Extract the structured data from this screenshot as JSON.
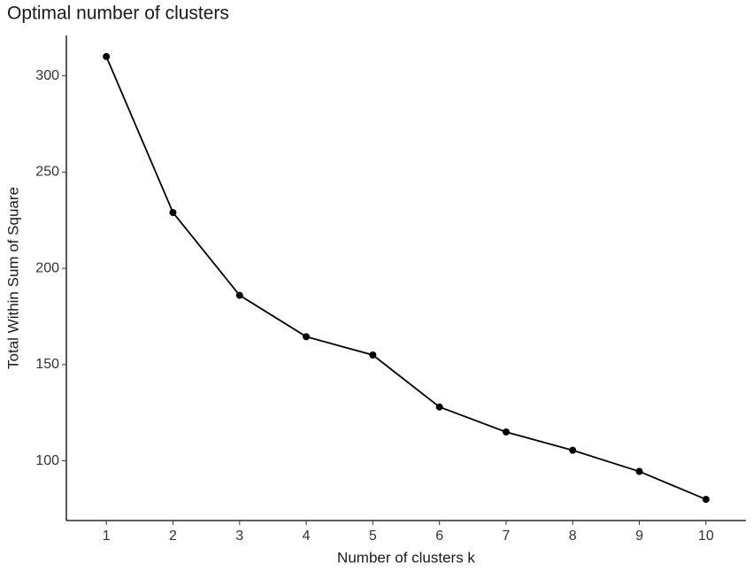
{
  "chart_data": {
    "type": "line",
    "title": "Optimal number of clusters",
    "x_label": "Number of clusters k",
    "y_label": "Total Within Sum of Square",
    "x": [
      1,
      2,
      3,
      4,
      5,
      6,
      7,
      8,
      9,
      10
    ],
    "series": [
      {
        "name": "wss",
        "color": "#000000",
        "values": [
          310,
          229,
          186,
          164.5,
          155,
          128,
          115,
          105.5,
          94.5,
          80
        ]
      }
    ],
    "xlim": [
      0.4,
      10.6
    ],
    "xticks": [
      1,
      2,
      3,
      4,
      5,
      6,
      7,
      8,
      9,
      10
    ],
    "ylim": [
      69,
      321
    ],
    "yticks": [
      100,
      150,
      200,
      250,
      300
    ],
    "grid": false
  }
}
